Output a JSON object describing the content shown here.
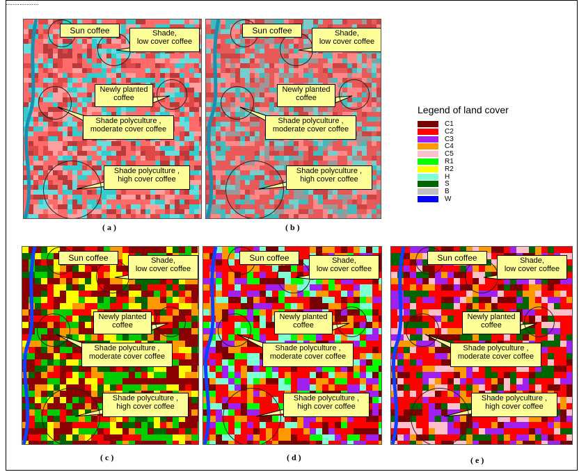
{
  "header_fragment": "...................",
  "legend": {
    "title": "Legend of land cover",
    "items": [
      {
        "label": "C1",
        "color": "#7a0000"
      },
      {
        "label": "C2",
        "color": "#ff0000"
      },
      {
        "label": "C3",
        "color": "#a020f0"
      },
      {
        "label": "C4",
        "color": "#ff9900"
      },
      {
        "label": "C5",
        "color": "#ffc0cb"
      },
      {
        "label": "R1",
        "color": "#00ff00"
      },
      {
        "label": "R2",
        "color": "#ffff00"
      },
      {
        "label": "H",
        "color": "#7fffd4"
      },
      {
        "label": "S",
        "color": "#006400"
      },
      {
        "label": "B",
        "color": "#c0c0c0"
      },
      {
        "label": "W",
        "color": "#0000ff"
      }
    ]
  },
  "callouts": {
    "sun": "Sun coffee",
    "shade_low": [
      "Shade,",
      "low cover coffee"
    ],
    "newly": [
      "Newly planted",
      "coffee"
    ],
    "moderate": [
      "Shade  polyculture ,",
      "moderate cover coffee"
    ],
    "high": [
      "Shade polyculture ,",
      "high cover coffee"
    ]
  },
  "panels": [
    {
      "id": "a",
      "caption": "( a )",
      "base": "#ff6b6b",
      "accents": [
        "#33cccc",
        "#66dddd",
        "#e04848",
        "#b83a3a",
        "#ffa0a0"
      ]
    },
    {
      "id": "b",
      "caption": "( b )",
      "base": "#e85a5a",
      "accents": [
        "#44bbbb",
        "#77cccc",
        "#cc4444",
        "#ff8888",
        "#999999"
      ]
    },
    {
      "id": "c",
      "caption": "( c )",
      "base": "#8b0000",
      "accents": [
        "#ff0000",
        "#ffff00",
        "#00cc00",
        "#ff9900",
        "#006400"
      ]
    },
    {
      "id": "d",
      "caption": "( d )",
      "base": "#ff0000",
      "accents": [
        "#7a0000",
        "#00ff00",
        "#a020f0",
        "#ff9900",
        "#7fffd4"
      ]
    },
    {
      "id": "e",
      "caption": "( e )",
      "base": "#ff0000",
      "accents": [
        "#7a0000",
        "#ff9900",
        "#006400",
        "#ffc0cb",
        "#a020f0"
      ]
    }
  ]
}
